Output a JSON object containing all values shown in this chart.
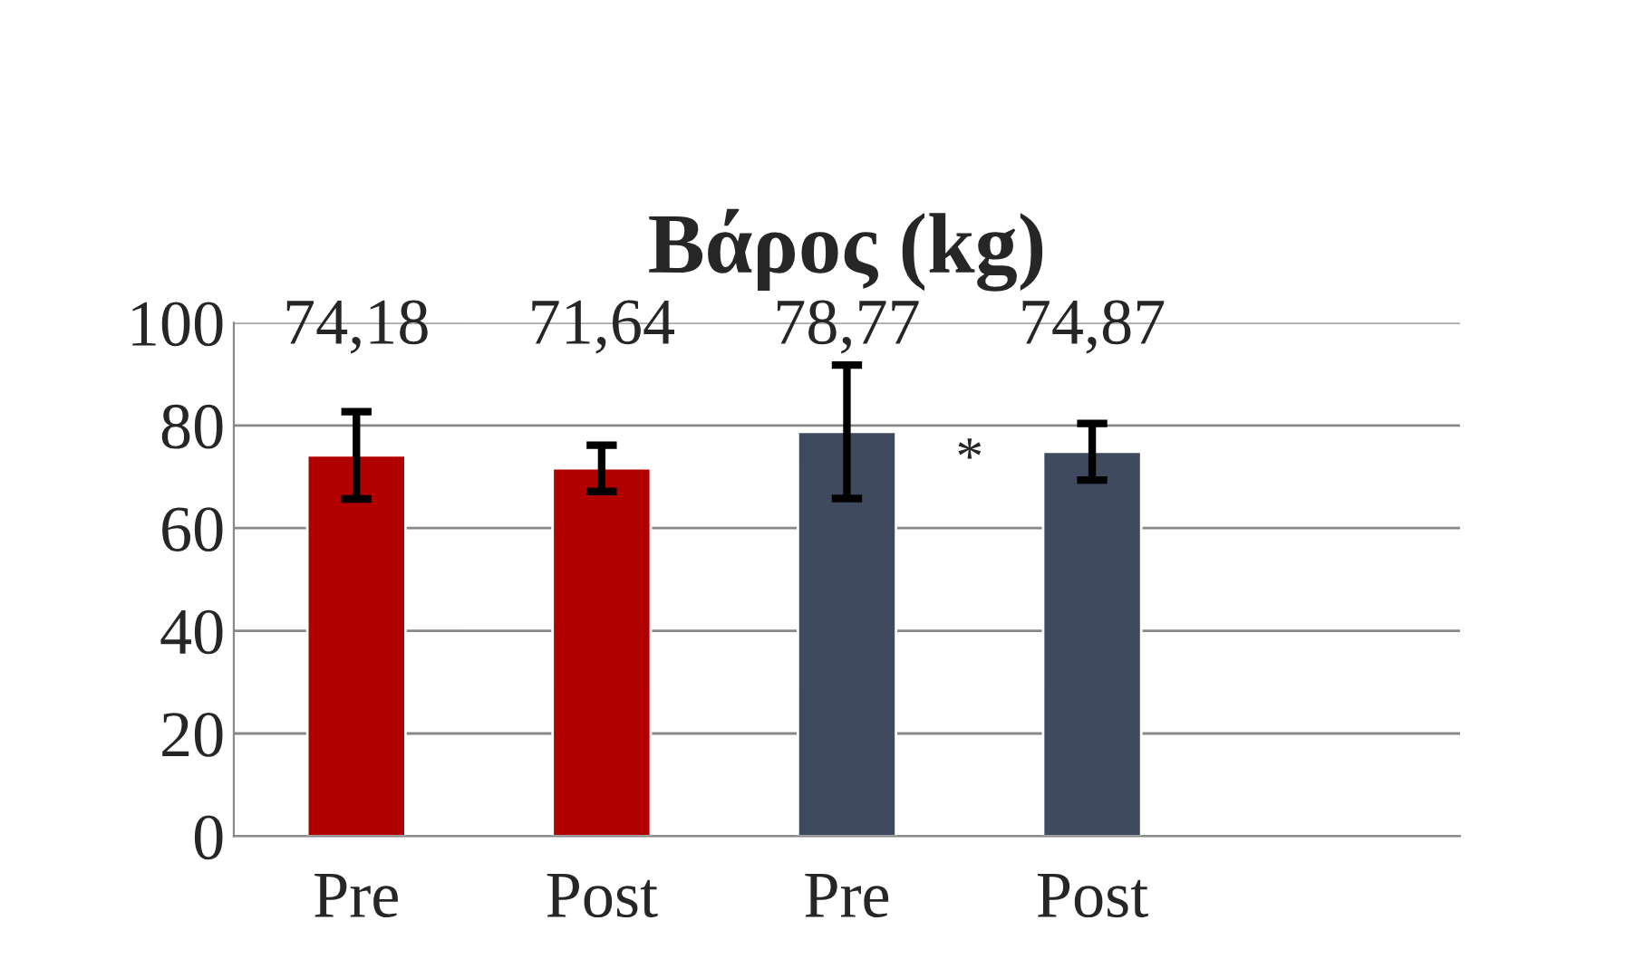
{
  "chart_data": {
    "type": "bar",
    "title": "Βάρος (kg)",
    "categories": [
      "Pre",
      "Post",
      "Pre",
      "Post",
      null
    ],
    "values": [
      74.18,
      71.64,
      78.77,
      74.87,
      null
    ],
    "colors": [
      "#b00000",
      "#b00000",
      "#3f4a5f",
      "#3f4a5f",
      "#3f4a5f"
    ],
    "errors": [
      8.5,
      4.5,
      13,
      5.5,
      null
    ],
    "value_labels": [
      "74,18",
      "71,64",
      "78,77",
      "74,87",
      null
    ],
    "ylim": [
      0,
      100
    ],
    "yticks": [
      0,
      20,
      40,
      60,
      80,
      100
    ],
    "grid": "y",
    "annotations": [
      "*"
    ]
  }
}
